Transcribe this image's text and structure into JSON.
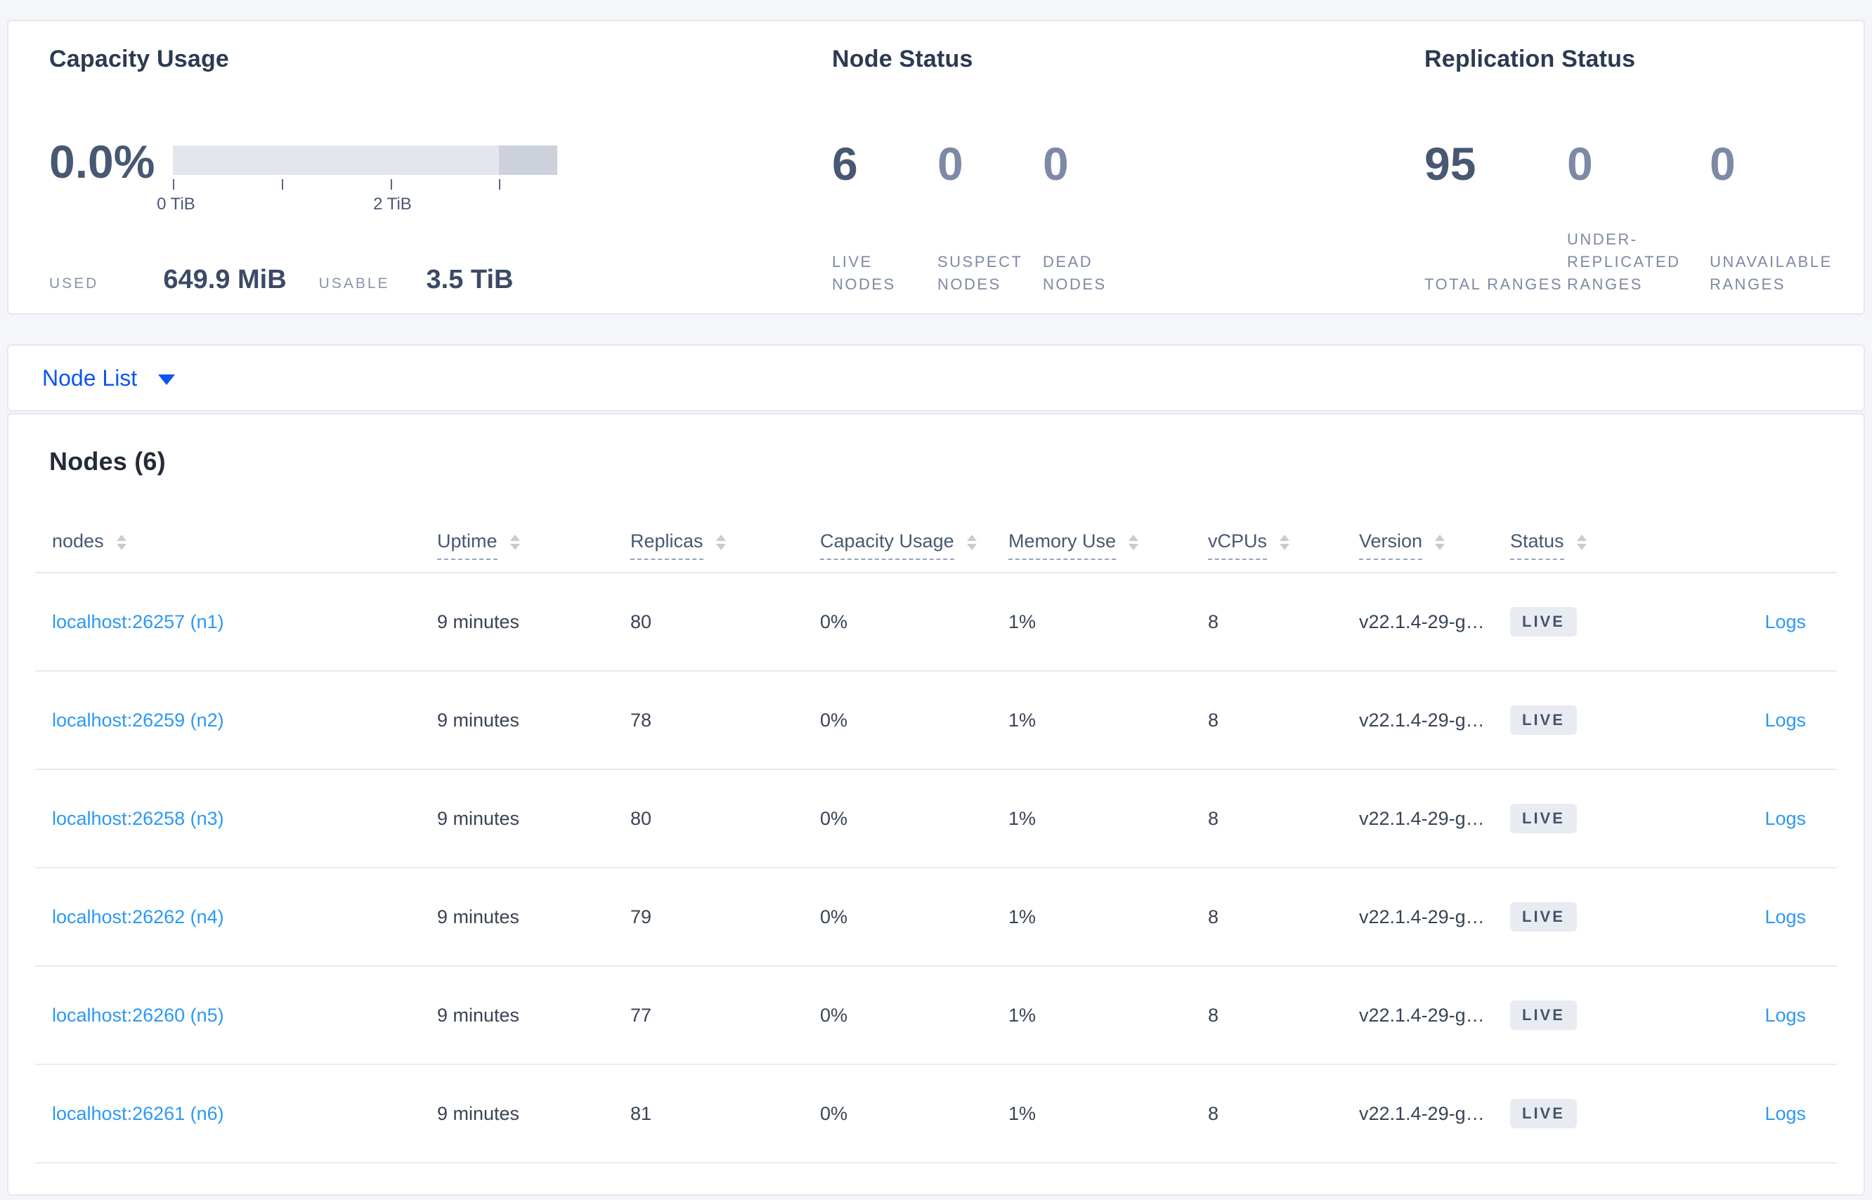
{
  "colors": {
    "accent_blue": "#0B56F2",
    "link_blue": "#2B99F4",
    "stat_dark": "#475872",
    "stat_muted": "#7D89A7",
    "badge_bg": "#E8ECF2",
    "badge_text": "#47526B"
  },
  "summary": {
    "capacity": {
      "title": "Capacity Usage",
      "percent": "0.0%",
      "tick_labels": [
        "0 TiB",
        "2 TiB"
      ],
      "used_label": "USED",
      "used_value": "649.9 MiB",
      "usable_label": "USABLE",
      "usable_value": "3.5 TiB"
    },
    "node_status": {
      "title": "Node Status",
      "stats": [
        {
          "value": "6",
          "label": "LIVE NODES"
        },
        {
          "value": "0",
          "label": "SUSPECT NODES"
        },
        {
          "value": "0",
          "label": "DEAD NODES"
        }
      ]
    },
    "replication": {
      "title": "Replication Status",
      "stats": [
        {
          "value": "95",
          "label": "TOTAL RANGES"
        },
        {
          "value": "0",
          "label": "UNDER-REPLICATED RANGES"
        },
        {
          "value": "0",
          "label": "UNAVAILABLE RANGES"
        }
      ]
    }
  },
  "view_selector": {
    "label": "Node List"
  },
  "nodes_table": {
    "title": "Nodes (6)",
    "columns": [
      "nodes",
      "Uptime",
      "Replicas",
      "Capacity Usage",
      "Memory Use",
      "vCPUs",
      "Version",
      "Status"
    ],
    "rows": [
      {
        "name": "localhost:26257 (n1)",
        "uptime": "9 minutes",
        "replicas": "80",
        "capacity": "0%",
        "memory": "1%",
        "vcpus": "8",
        "version": "v22.1.4-29-g…",
        "status": "LIVE",
        "logs": "Logs"
      },
      {
        "name": "localhost:26259 (n2)",
        "uptime": "9 minutes",
        "replicas": "78",
        "capacity": "0%",
        "memory": "1%",
        "vcpus": "8",
        "version": "v22.1.4-29-g…",
        "status": "LIVE",
        "logs": "Logs"
      },
      {
        "name": "localhost:26258 (n3)",
        "uptime": "9 minutes",
        "replicas": "80",
        "capacity": "0%",
        "memory": "1%",
        "vcpus": "8",
        "version": "v22.1.4-29-g…",
        "status": "LIVE",
        "logs": "Logs"
      },
      {
        "name": "localhost:26262 (n4)",
        "uptime": "9 minutes",
        "replicas": "79",
        "capacity": "0%",
        "memory": "1%",
        "vcpus": "8",
        "version": "v22.1.4-29-g…",
        "status": "LIVE",
        "logs": "Logs"
      },
      {
        "name": "localhost:26260 (n5)",
        "uptime": "9 minutes",
        "replicas": "77",
        "capacity": "0%",
        "memory": "1%",
        "vcpus": "8",
        "version": "v22.1.4-29-g…",
        "status": "LIVE",
        "logs": "Logs"
      },
      {
        "name": "localhost:26261 (n6)",
        "uptime": "9 minutes",
        "replicas": "81",
        "capacity": "0%",
        "memory": "1%",
        "vcpus": "8",
        "version": "v22.1.4-29-g…",
        "status": "LIVE",
        "logs": "Logs"
      }
    ]
  }
}
